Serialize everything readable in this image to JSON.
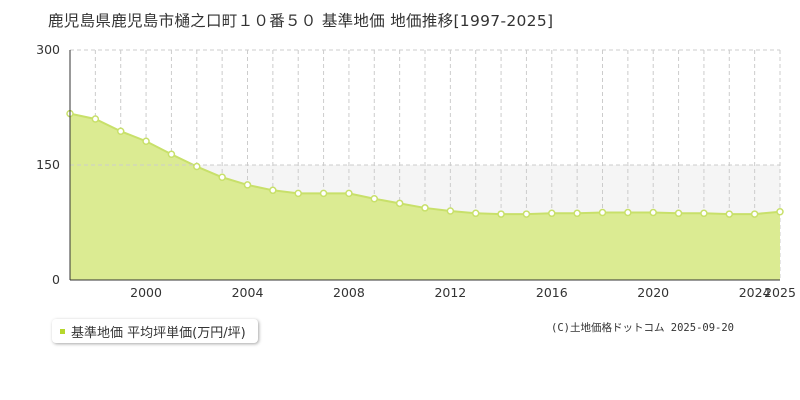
{
  "title": "鹿児島県鹿児島市樋之口町１０番５０ 基準地価 地価推移[1997-2025]",
  "credit": "(C)土地価格ドットコム 2025-09-20",
  "colors": {
    "fill": "#dbeb92",
    "line": "#c8e06a",
    "marker_fill": "#ffffff",
    "grid": "#cccccc",
    "legend_swatch": "#b6d72c",
    "band": "#f5f5f5"
  },
  "chart_data": {
    "type": "area",
    "title": "鹿児島県鹿児島市樋之口町１０番５０ 基準地価 地価推移[1997-2025]",
    "xlabel": "",
    "ylabel": "",
    "xlim": [
      1997,
      2025
    ],
    "ylim": [
      0,
      300
    ],
    "yticks": [
      0,
      150,
      300
    ],
    "xticks": [
      2000,
      2004,
      2008,
      2012,
      2016,
      2020,
      2024,
      2025
    ],
    "grid": true,
    "legend_position": "bottom-left",
    "series": [
      {
        "name": "基準地価 平均坪単価(万円/坪)",
        "x": [
          1997,
          1998,
          1999,
          2000,
          2001,
          2002,
          2003,
          2004,
          2005,
          2006,
          2007,
          2008,
          2009,
          2010,
          2011,
          2012,
          2013,
          2014,
          2015,
          2016,
          2017,
          2018,
          2019,
          2020,
          2021,
          2022,
          2023,
          2024,
          2025
        ],
        "values": [
          217,
          210,
          194,
          181,
          164,
          148,
          134,
          124,
          117,
          113,
          113,
          113,
          106,
          100,
          94,
          90,
          87,
          86,
          86,
          87,
          87,
          88,
          88,
          88,
          87,
          87,
          86,
          86,
          89
        ]
      }
    ]
  }
}
